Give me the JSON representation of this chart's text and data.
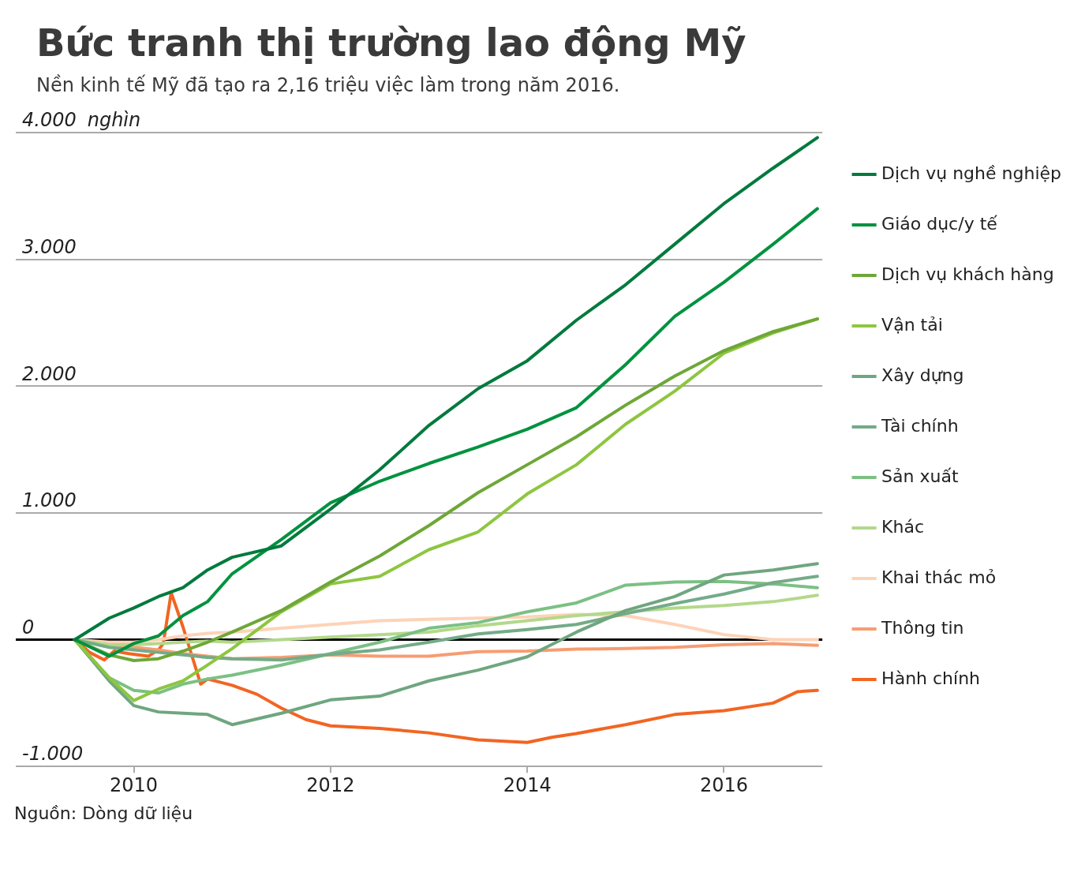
{
  "chart_data": {
    "type": "line",
    "title": "Bức tranh thị trường lao động Mỹ",
    "subtitle": "Nền kinh tế Mỹ đã tạo ra 2,16 triệu việc làm trong năm 2016.",
    "ylabel": "nghìn",
    "annotations": [
      "Nguồn: Dòng dữ liệu"
    ],
    "x": [
      2009.4,
      2009.75,
      2010,
      2010.25,
      2010.5,
      2010.75,
      2011,
      2011.5,
      2012,
      2012.5,
      2013,
      2013.5,
      2014,
      2014.5,
      2015,
      2015.5,
      2016,
      2016.5,
      2016.95
    ],
    "xlim": [
      2008.8,
      2017
    ],
    "xticks": [
      2010,
      2012,
      2014,
      2016
    ],
    "ylim": [
      -1000,
      4000
    ],
    "yticks": [
      {
        "value": -1000,
        "label": "-1.000"
      },
      0,
      {
        "value": 1000,
        "label": "1.000"
      },
      {
        "value": 2000,
        "label": "2.000"
      },
      {
        "value": 3000,
        "label": "3.000"
      },
      {
        "value": 4000,
        "label": "4.000"
      }
    ],
    "grid": "y",
    "legend": "right",
    "marker": "none",
    "line_style": "solid",
    "ref_lines": [
      {
        "axis": "y",
        "value": 0,
        "color": "#000000"
      }
    ],
    "series": [
      {
        "name": "Dịch vụ nghề nghiệp",
        "color": "#007a3d",
        "values": [
          0,
          170,
          250,
          340,
          410,
          550,
          650,
          740,
          1030,
          1340,
          1690,
          1980,
          2200,
          2520,
          2800,
          3120,
          3440,
          3720,
          3960
        ]
      },
      {
        "name": "Giáo dục/y tế",
        "color": "#00923f",
        "values": [
          0,
          -130,
          -30,
          30,
          190,
          300,
          520,
          790,
          1080,
          1250,
          1390,
          1520,
          1660,
          1830,
          2170,
          2550,
          2820,
          3120,
          3400
        ]
      },
      {
        "name": "Dịch vụ khách hàng",
        "color": "#6ea737",
        "values": [
          0,
          -120,
          -165,
          -150,
          -90,
          -20,
          60,
          230,
          455,
          660,
          900,
          1160,
          1380,
          1600,
          1850,
          2080,
          2280,
          2430,
          2530
        ]
      },
      {
        "name": "Vận tải",
        "color": "#8dc63f",
        "values": [
          0,
          -300,
          -480,
          -390,
          -325,
          -200,
          -70,
          220,
          440,
          500,
          710,
          850,
          1150,
          1380,
          1700,
          1960,
          2260,
          2420,
          2530
        ]
      },
      {
        "name": "Xây dựng",
        "color": "#6fa67f",
        "values": [
          0,
          -325,
          -520,
          -570,
          -580,
          -590,
          -670,
          -580,
          -475,
          -445,
          -325,
          -240,
          -135,
          60,
          230,
          340,
          510,
          550,
          600
        ]
      },
      {
        "name": "Tài chính",
        "color": "#74ab88",
        "values": [
          0,
          -60,
          -80,
          -100,
          -120,
          -140,
          -150,
          -160,
          -115,
          -80,
          -20,
          45,
          80,
          120,
          205,
          285,
          360,
          450,
          500
        ]
      },
      {
        "name": "Sản xuất",
        "color": "#7cc084",
        "values": [
          0,
          -300,
          -400,
          -420,
          -350,
          -310,
          -280,
          -200,
          -110,
          -20,
          90,
          135,
          220,
          290,
          430,
          455,
          460,
          440,
          410
        ]
      },
      {
        "name": "Khác",
        "color": "#b3d88b",
        "values": [
          0,
          -40,
          -40,
          -30,
          -20,
          -10,
          -20,
          0,
          20,
          40,
          60,
          110,
          150,
          190,
          220,
          250,
          270,
          300,
          350
        ]
      },
      {
        "name": "Khai thác mỏ",
        "color": "#fdd3b8",
        "values": [
          0,
          -20,
          -20,
          0,
          30,
          50,
          60,
          90,
          120,
          150,
          160,
          170,
          180,
          200,
          190,
          120,
          40,
          0,
          0
        ]
      },
      {
        "name": "Thông tin",
        "color": "#f69d72",
        "values": [
          0,
          -40,
          -60,
          -80,
          -110,
          -130,
          -150,
          -140,
          -120,
          -130,
          -130,
          -95,
          -90,
          -75,
          -70,
          -60,
          -40,
          -30,
          -45
        ]
      },
      {
        "name": "Hành chính",
        "color": "#f26522",
        "x": [
          2009.4,
          2009.55,
          2009.7,
          2009.8,
          2009.95,
          2010.15,
          2010.25,
          2010.3,
          2010.38,
          2010.5,
          2010.68,
          2010.75,
          2011,
          2011.25,
          2011.5,
          2011.75,
          2012,
          2012.5,
          2013,
          2013.5,
          2014,
          2014.25,
          2014.5,
          2015,
          2015.5,
          2016,
          2016.5,
          2016.75,
          2016.95
        ],
        "values": [
          0,
          -100,
          -160,
          -90,
          -110,
          -130,
          -80,
          -30,
          370,
          100,
          -350,
          -310,
          -360,
          -430,
          -540,
          -630,
          -680,
          -700,
          -735,
          -790,
          -810,
          -770,
          -740,
          -670,
          -590,
          -560,
          -500,
          -410,
          -400
        ]
      }
    ]
  }
}
